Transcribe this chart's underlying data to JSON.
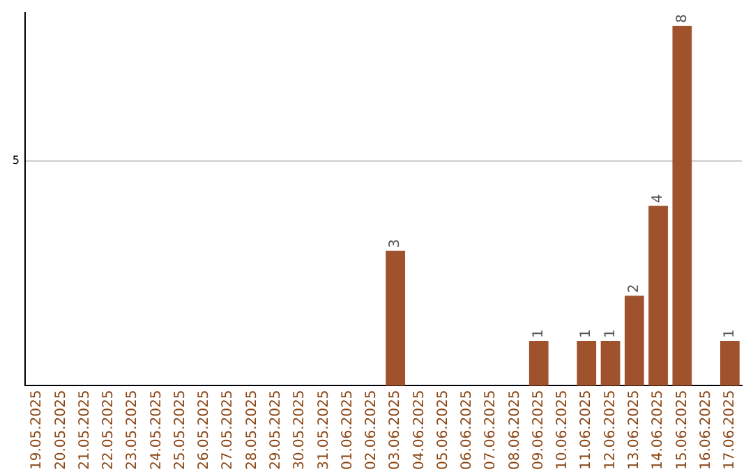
{
  "chart_data": {
    "type": "bar",
    "categories": [
      "19.05.2025",
      "20.05.2025",
      "21.05.2025",
      "22.05.2025",
      "23.05.2025",
      "24.05.2025",
      "25.05.2025",
      "26.05.2025",
      "27.05.2025",
      "28.05.2025",
      "29.05.2025",
      "30.05.2025",
      "31.05.2025",
      "01.06.2025",
      "02.06.2025",
      "03.06.2025",
      "04.06.2025",
      "05.06.2025",
      "06.06.2025",
      "07.06.2025",
      "08.06.2025",
      "09.06.2025",
      "10.06.2025",
      "11.06.2025",
      "12.06.2025",
      "13.06.2025",
      "14.06.2025",
      "15.06.2025",
      "16.06.2025",
      "17.06.2025"
    ],
    "values": [
      null,
      null,
      null,
      null,
      null,
      null,
      null,
      null,
      null,
      null,
      null,
      null,
      null,
      null,
      null,
      3,
      null,
      null,
      null,
      null,
      null,
      1,
      null,
      1,
      1,
      2,
      4,
      8,
      null,
      1
    ],
    "data_labels": true,
    "color": "#a0522d",
    "ylim": [
      0,
      8.3
    ],
    "yticks": [
      5
    ],
    "grid": "y"
  }
}
